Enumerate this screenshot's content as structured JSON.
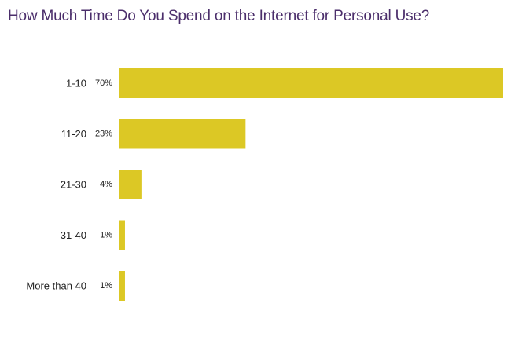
{
  "chart_data": {
    "type": "bar",
    "orientation": "horizontal",
    "title": "How Much Time Do You Spend on the Internet for Personal Use?",
    "categories": [
      "1-10",
      "11-20",
      "21-30",
      "31-40",
      "More than 40"
    ],
    "values": [
      70,
      23,
      4,
      1,
      1
    ],
    "value_labels": [
      "70%",
      "23%",
      "4%",
      "1%",
      "1%"
    ],
    "xlim": [
      0,
      70
    ],
    "xlabel": "",
    "ylabel": "",
    "grid": false,
    "legend": "none",
    "bar_color": "#dcc825"
  }
}
